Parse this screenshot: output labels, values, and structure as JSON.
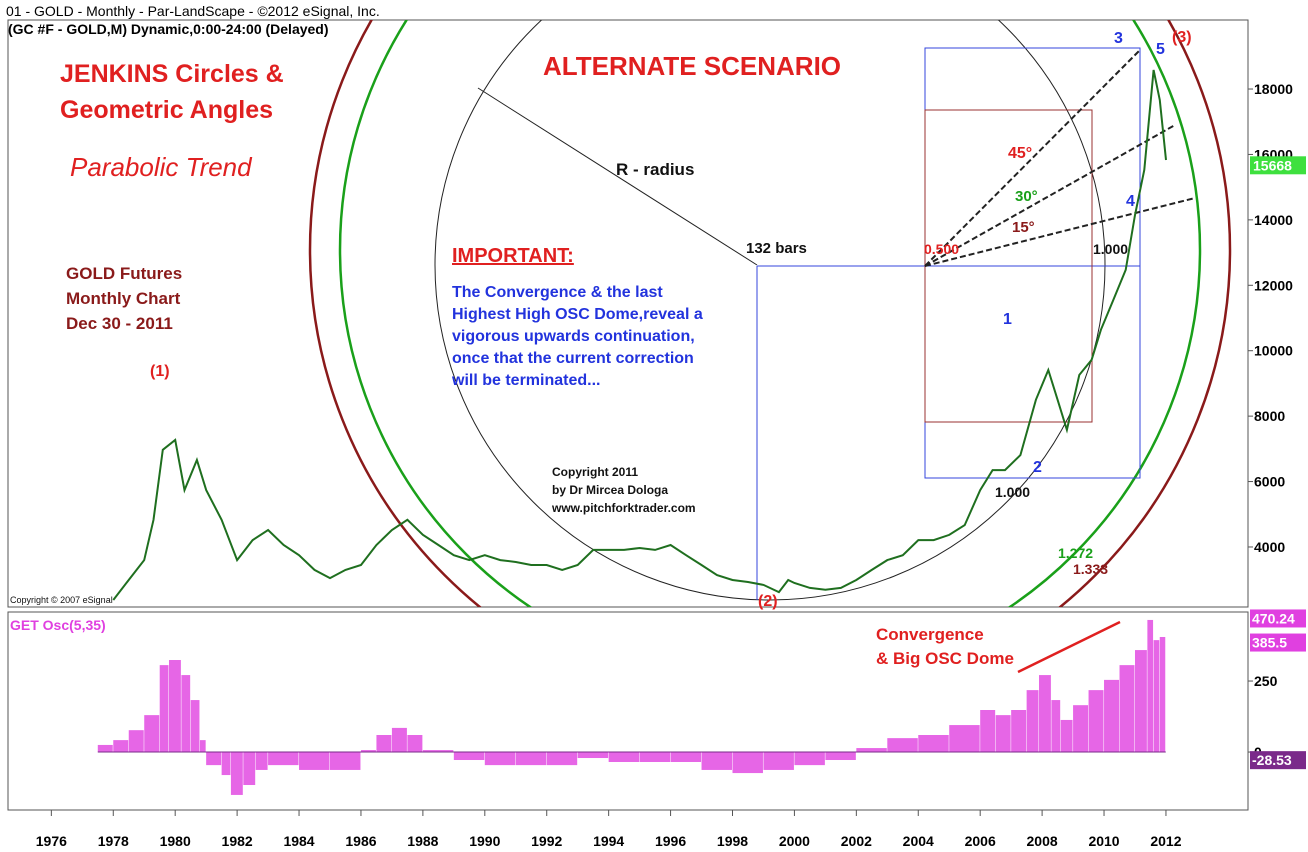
{
  "chart_data": [
    {
      "type": "line",
      "title": "01 - GOLD -  Monthly - Par-LandScape - ©2012 eSignal, Inc.",
      "subtitle": "(GC #F - GOLD,M) Dynamic,0:00-24:00 (Delayed)",
      "color": "#1f6f1f",
      "x": [
        1978.0,
        1978.5,
        1979.0,
        1979.3,
        1979.6,
        1980.0,
        1980.3,
        1980.7,
        1981.0,
        1981.5,
        1982.0,
        1982.5,
        1983.0,
        1983.5,
        1984.0,
        1984.5,
        1985.0,
        1985.5,
        1986.0,
        1986.5,
        1987.0,
        1987.5,
        1988.0,
        1988.5,
        1989.0,
        1989.5,
        1990.0,
        1990.5,
        1991.0,
        1991.5,
        1992.0,
        1992.5,
        1993.0,
        1993.5,
        1994.0,
        1994.5,
        1995.0,
        1995.5,
        1996.0,
        1996.5,
        1997.0,
        1997.5,
        1998.0,
        1998.5,
        1999.0,
        1999.5,
        1999.8,
        2000.0,
        2000.5,
        2001.0,
        2001.5,
        2002.0,
        2002.5,
        2003.0,
        2003.5,
        2004.0,
        2004.5,
        2005.0,
        2005.5,
        2006.0,
        2006.4,
        2006.8,
        2007.3,
        2007.8,
        2008.2,
        2008.5,
        2008.8,
        2009.2,
        2009.6,
        2009.9,
        2010.3,
        2010.7,
        2011.0,
        2011.3,
        2011.6,
        2011.8,
        2012.0
      ],
      "values": [
        2380,
        2990,
        3600,
        4830,
        6970,
        7270,
        5740,
        6660,
        5740,
        4830,
        3600,
        4210,
        4520,
        4060,
        3750,
        3300,
        3050,
        3300,
        3450,
        4060,
        4520,
        4830,
        4370,
        4060,
        3750,
        3600,
        3750,
        3600,
        3540,
        3450,
        3450,
        3300,
        3450,
        3910,
        3910,
        3910,
        3970,
        3910,
        4060,
        3750,
        3450,
        3140,
        2990,
        2930,
        2840,
        2620,
        2990,
        2900,
        2750,
        2690,
        2750,
        2990,
        3300,
        3600,
        3750,
        4210,
        4210,
        4370,
        4670,
        5740,
        6350,
        6350,
        6810,
        8500,
        9410,
        8500,
        7580,
        9260,
        9720,
        10640,
        11550,
        12470,
        14150,
        15530,
        18580,
        17660,
        15830
      ],
      "xlim": [
        1974.6,
        2014.65
      ],
      "xticks": [
        1976,
        1978,
        1980,
        1982,
        1984,
        1986,
        1988,
        1990,
        1992,
        1994,
        1996,
        1998,
        2000,
        2002,
        2004,
        2006,
        2008,
        2010,
        2012
      ],
      "ylim": [
        2165,
        20110
      ],
      "yticks": [
        4000,
        6000,
        8000,
        10000,
        12000,
        14000,
        16000,
        18000
      ],
      "last_value": 15668,
      "last_value_color": "#3ee03e",
      "annotations": [
        "JENKINS Circles &",
        "Geometric Angles",
        "Parabolic Trend",
        "ALTERNATE SCENARIO",
        "R - radius",
        "132 bars",
        "IMPORTANT:",
        "The Convergence & the last",
        "Highest High OSC Dome,reveal a",
        "vigorous upwards continuation,",
        "once that the current correction",
        "will be terminated...",
        "GOLD Futures",
        "Monthly Chart",
        "Dec 30 - 2011",
        "(1)",
        "(2)",
        "(3)",
        "3",
        "5",
        "4",
        "1",
        "2",
        "45°",
        "30°",
        "15°",
        "0.500",
        "1.000",
        "1.000",
        "1.272",
        "1.333",
        "Copyright 2011",
        "by Dr Mircea Dologa",
        "www.pitchforktrader.com",
        "Copyright © 2007 eSignal"
      ]
    },
    {
      "type": "bar",
      "title": "GET Osc(5,35)",
      "color": "#e040e0",
      "x": [
        1977.5,
        1978.0,
        1978.5,
        1979.0,
        1979.5,
        1979.8,
        1980.2,
        1980.5,
        1980.8,
        1981.0,
        1981.5,
        1981.8,
        1982.2,
        1982.6,
        1983.0,
        1984.0,
        1985.0,
        1986.0,
        1986.5,
        1987.0,
        1987.5,
        1988.0,
        1989.0,
        1990.0,
        1991.0,
        1992.0,
        1993.0,
        1994.0,
        1995.0,
        1996.0,
        1997.0,
        1998.0,
        1999.0,
        2000.0,
        2001.0,
        2002.0,
        2003.0,
        2004.0,
        2005.0,
        2006.0,
        2006.5,
        2007.0,
        2007.5,
        2007.9,
        2008.3,
        2008.6,
        2009.0,
        2009.5,
        2010.0,
        2010.5,
        2011.0,
        2011.4,
        2011.6,
        2011.8
      ],
      "values": [
        25,
        42,
        77,
        130,
        306,
        324,
        271,
        183,
        42,
        -46,
        -81,
        -151,
        -116,
        -63,
        -46,
        -63,
        -63,
        7,
        60,
        85,
        60,
        7,
        -28,
        -46,
        -46,
        -46,
        -21,
        -35,
        -35,
        -35,
        -63,
        -74,
        -63,
        -46,
        -28,
        14,
        49,
        60,
        95,
        148,
        130,
        148,
        218,
        271,
        183,
        113,
        165,
        218,
        254,
        306,
        359,
        465,
        394,
        405
      ],
      "ylim": [
        -204,
        493
      ],
      "yticks": [
        0,
        250
      ],
      "last_values": [
        470.24,
        385.5,
        -28.53
      ],
      "last_value_colors": [
        "#e040e0",
        "#e040e0",
        "#7a2a8a"
      ],
      "annotations": [
        "Convergence",
        "& Big OSC Dome"
      ]
    }
  ]
}
